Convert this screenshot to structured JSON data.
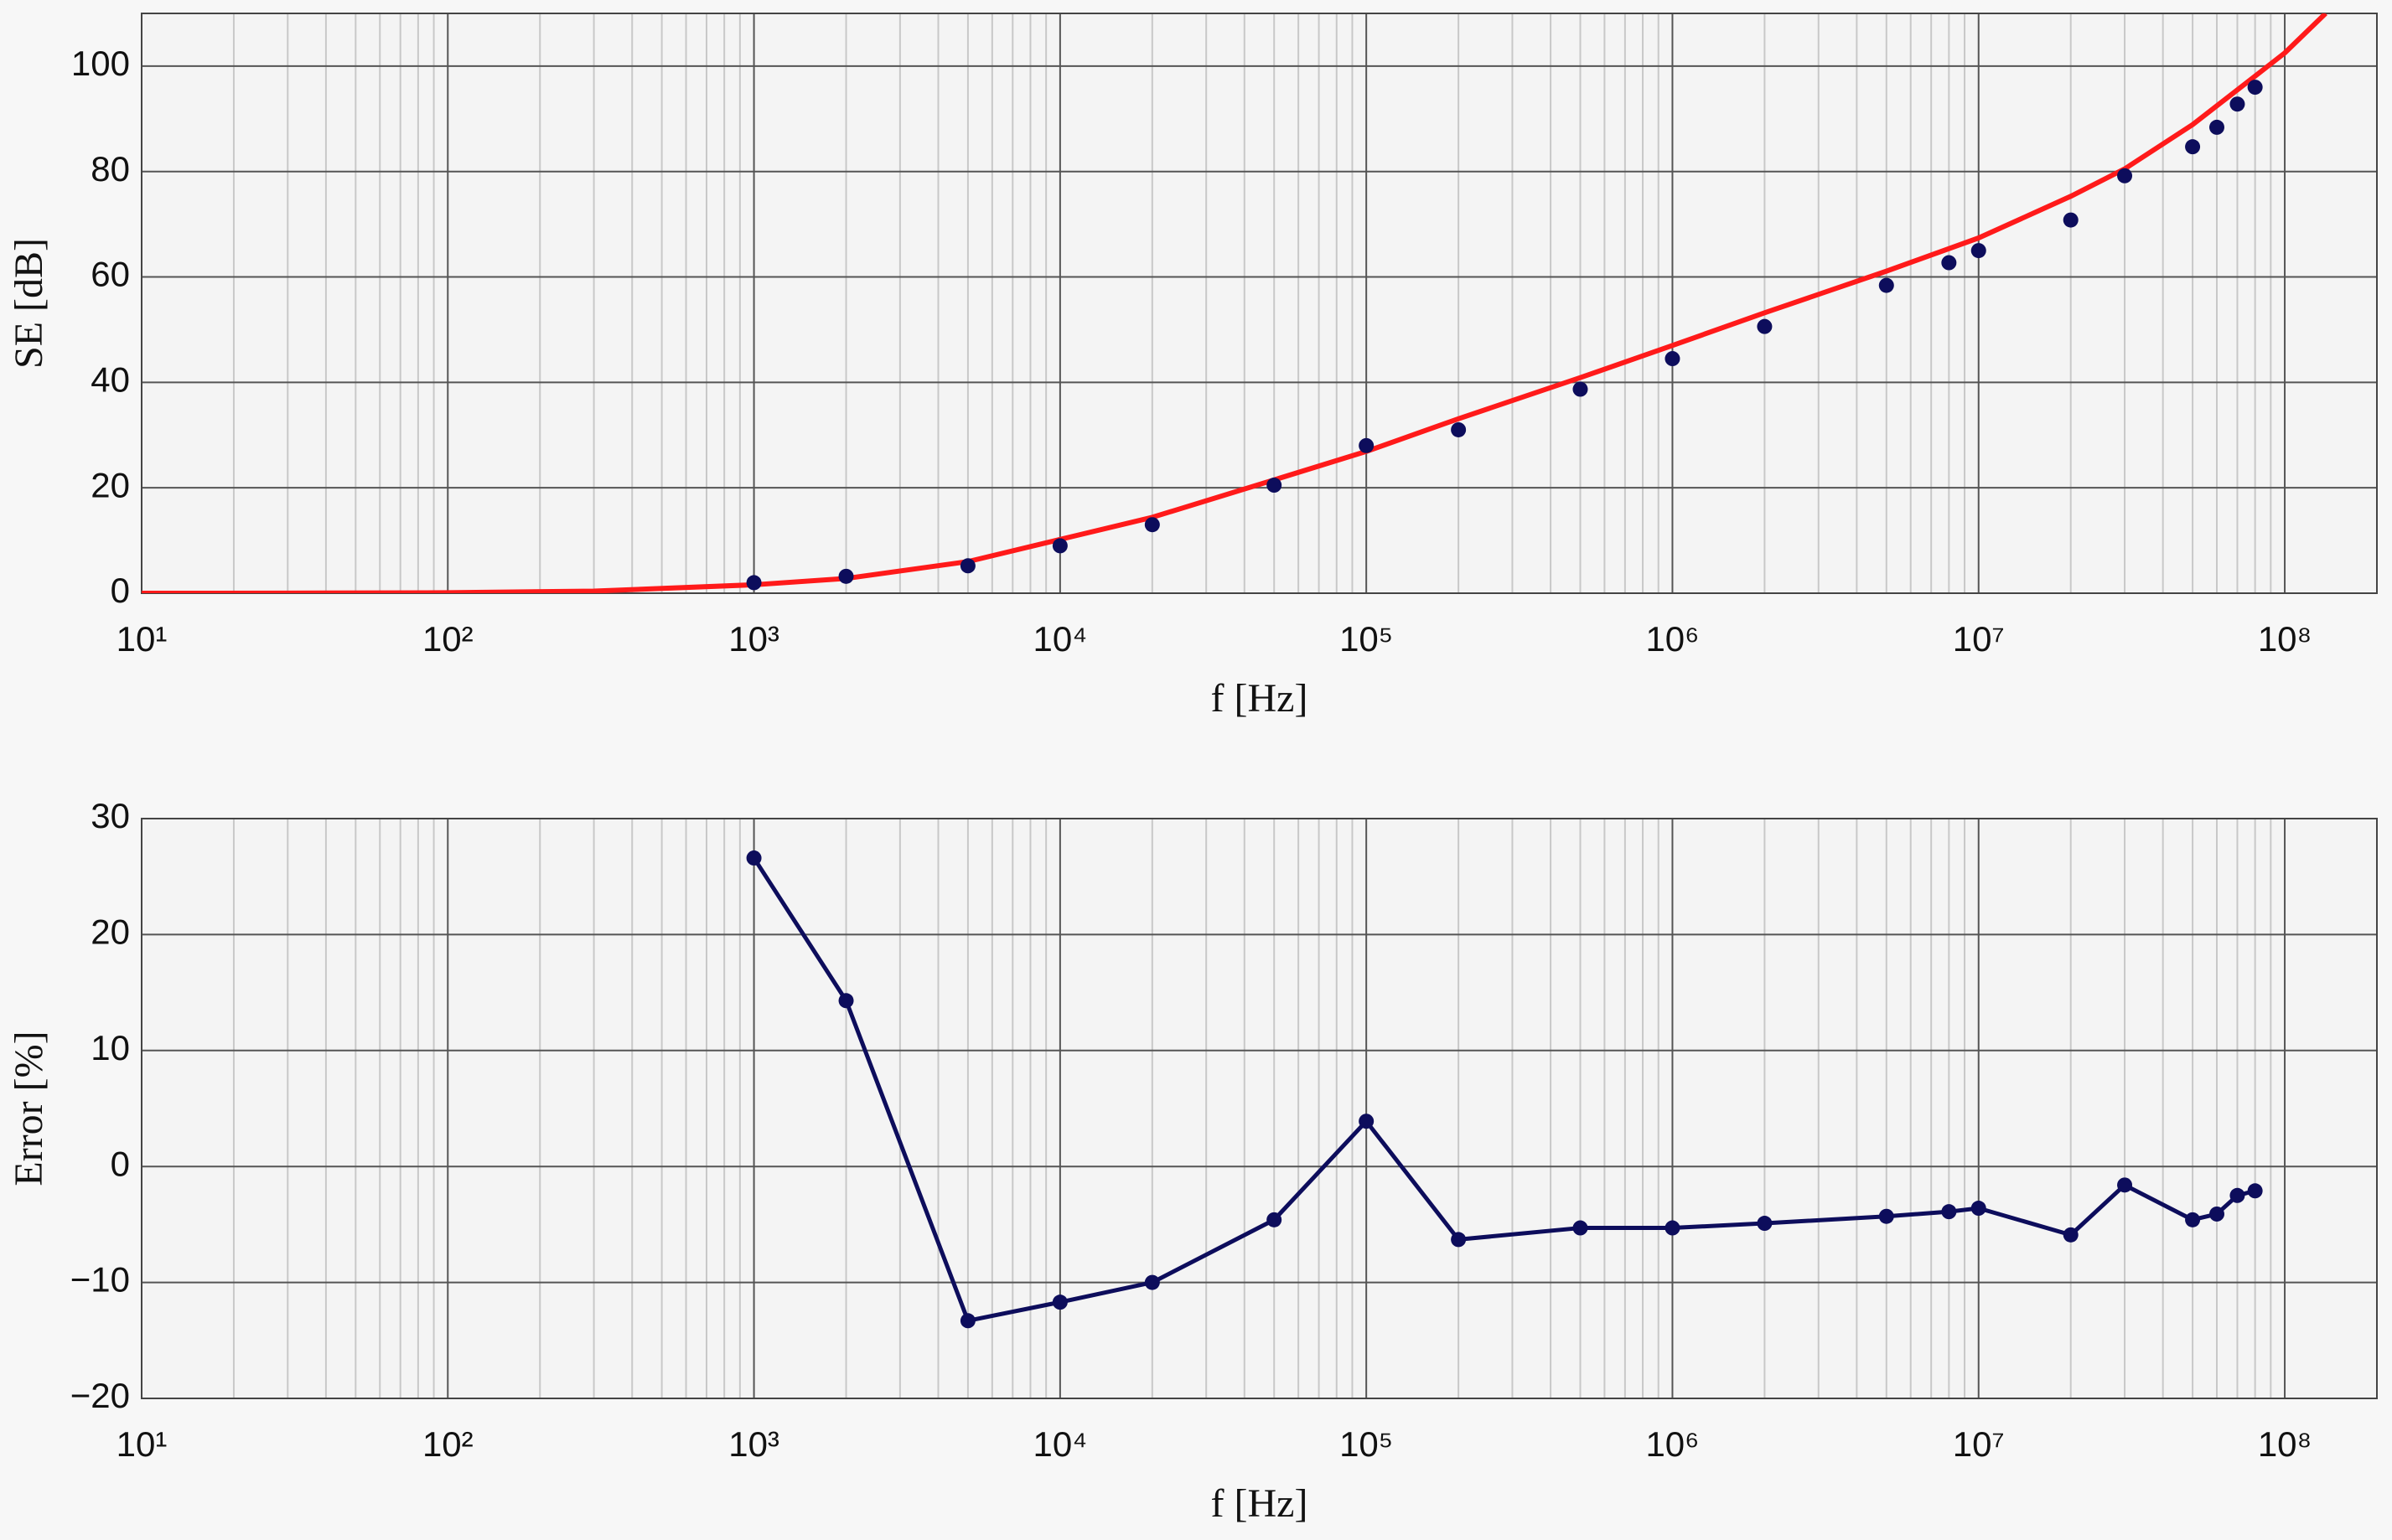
{
  "chart_data": [
    {
      "type": "scatter",
      "xlabel": "f [Hz]",
      "ylabel": "SE [dB]",
      "xscale": "log",
      "grid": true,
      "minor_grid": true,
      "xlim": [
        10,
        200000000
      ],
      "ylim": [
        0,
        110
      ],
      "xticks": [
        {
          "value": 10,
          "label": "10¹"
        },
        {
          "value": 100,
          "label": "10²"
        },
        {
          "value": 1000,
          "label": "10³"
        },
        {
          "value": 10000,
          "label": "10⁴"
        },
        {
          "value": 100000,
          "label": "10⁵"
        },
        {
          "value": 1000000,
          "label": "10⁶"
        },
        {
          "value": 10000000,
          "label": "10⁷"
        },
        {
          "value": 100000000,
          "label": "10⁸"
        }
      ],
      "yticks": [
        0,
        20,
        40,
        60,
        80,
        100
      ],
      "series": [
        {
          "type": "line",
          "color": "#ff1a1a",
          "x": [
            10,
            30,
            100,
            300,
            1000,
            2000,
            5000,
            10000,
            20000,
            50000,
            100000,
            200000,
            500000,
            1000000,
            2000000,
            5000000,
            10000000,
            20000000,
            30000000,
            50000000,
            80000000,
            100000000,
            136000000
          ],
          "values": [
            0,
            0.02,
            0.1,
            0.4,
            1.6,
            2.8,
            6.0,
            10.2,
            14.4,
            21.5,
            26.9,
            33.1,
            40.9,
            47.0,
            53.2,
            61.1,
            67.4,
            75.3,
            80.5,
            88.9,
            98.1,
            102.5,
            110
          ]
        },
        {
          "type": "scatter",
          "color": "#0d0d5c",
          "x": [
            1000,
            2000,
            5000,
            10000,
            20000,
            50000,
            100000,
            200000,
            500000,
            1000000,
            2000000,
            5000000,
            8000000,
            10000000,
            20000000,
            30000000,
            50000000,
            60000000,
            70000000,
            80000000
          ],
          "values": [
            2.0,
            3.2,
            5.2,
            9.0,
            13.0,
            20.5,
            28.0,
            31.0,
            38.7,
            44.5,
            50.6,
            58.4,
            62.7,
            65.0,
            70.8,
            79.2,
            84.7,
            88.4,
            92.8,
            96.0
          ]
        }
      ]
    },
    {
      "type": "line",
      "xlabel": "f [Hz]",
      "ylabel": "Error [%]",
      "xscale": "log",
      "grid": true,
      "minor_grid": true,
      "markers": true,
      "xlim": [
        10,
        200000000
      ],
      "ylim": [
        -20,
        30
      ],
      "xticks": [
        {
          "value": 10,
          "label": "10¹"
        },
        {
          "value": 100,
          "label": "10²"
        },
        {
          "value": 1000,
          "label": "10³"
        },
        {
          "value": 10000,
          "label": "10⁴"
        },
        {
          "value": 100000,
          "label": "10⁵"
        },
        {
          "value": 1000000,
          "label": "10⁶"
        },
        {
          "value": 10000000,
          "label": "10⁷"
        },
        {
          "value": 100000000,
          "label": "10⁸"
        }
      ],
      "yticks": [
        {
          "value": -20,
          "label": "−20"
        },
        {
          "value": -10,
          "label": "−10"
        },
        0,
        10,
        20,
        30
      ],
      "series": [
        {
          "type": "line",
          "color": "#0d0d5c",
          "x": [
            1000,
            2000,
            5000,
            10000,
            20000,
            50000,
            100000,
            200000,
            500000,
            1000000,
            2000000,
            5000000,
            8000000,
            10000000,
            20000000,
            30000000,
            50000000,
            60000000,
            70000000,
            80000000
          ],
          "values": [
            26.6,
            14.3,
            -13.3,
            -11.7,
            -10.0,
            -4.6,
            3.9,
            -6.3,
            -5.3,
            -5.3,
            -4.9,
            -4.3,
            -3.9,
            -3.6,
            -5.9,
            -1.6,
            -4.6,
            -4.1,
            -2.5,
            -2.1
          ]
        }
      ]
    }
  ]
}
